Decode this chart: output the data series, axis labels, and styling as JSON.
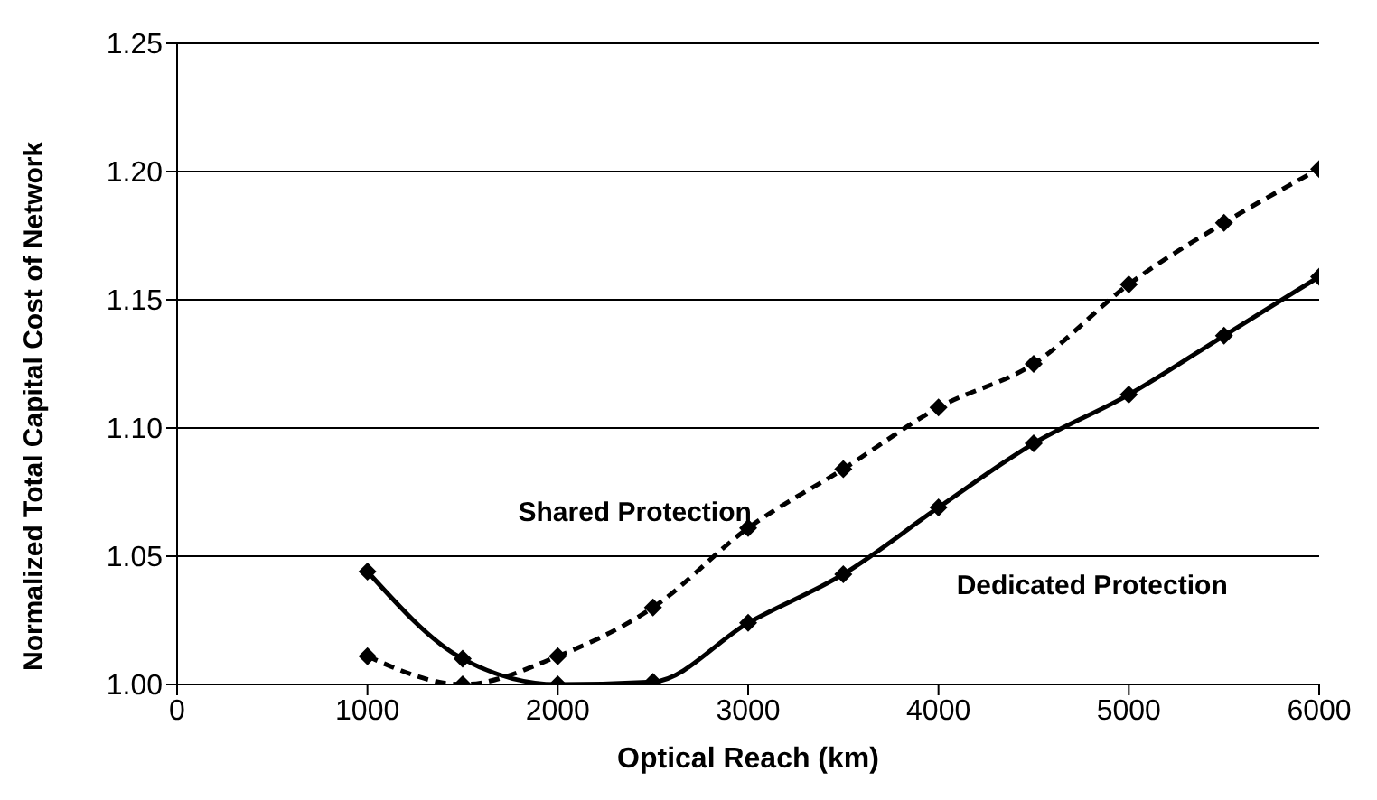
{
  "chart_data": {
    "type": "line",
    "xlabel": "Optical Reach (km)",
    "ylabel": "Normalized Total Capital Cost of Network",
    "x": [
      1000,
      1500,
      2000,
      2500,
      3000,
      3500,
      4000,
      4500,
      5000,
      5500,
      6000
    ],
    "series": [
      {
        "name": "Shared Protection",
        "color": "#000000",
        "line_style": "dashed",
        "values": [
          1.011,
          1.0,
          1.011,
          1.03,
          1.061,
          1.084,
          1.108,
          1.125,
          1.156,
          1.18,
          1.201
        ]
      },
      {
        "name": "Dedicated Protection",
        "color": "#000000",
        "line_style": "solid",
        "values": [
          1.044,
          1.01,
          1.0,
          1.001,
          1.024,
          1.043,
          1.069,
          1.094,
          1.113,
          1.136,
          1.159
        ]
      }
    ],
    "xlim": [
      0,
      6000
    ],
    "xticks": [
      0,
      1000,
      2000,
      3000,
      4000,
      5000,
      6000
    ],
    "ylim": [
      1.0,
      1.25
    ],
    "yticks": [
      {
        "value": 1.0,
        "label": "1.00"
      },
      {
        "value": 1.05,
        "label": "1.05"
      },
      {
        "value": 1.1,
        "label": "1.10"
      },
      {
        "value": 1.15,
        "label": "1.15"
      },
      {
        "value": 1.2,
        "label": "1.20"
      },
      {
        "value": 1.25,
        "label": "1.25"
      }
    ],
    "grid": "y",
    "legend": false,
    "marker": "diamond"
  }
}
